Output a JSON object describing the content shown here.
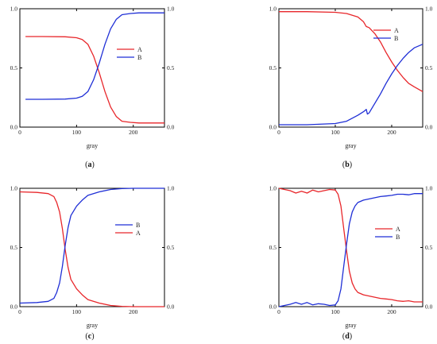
{
  "chart_data": [
    {
      "type": "line",
      "panel_label": "(a)",
      "caption": {
        "open": "(",
        "letter": "a",
        "close": ")"
      },
      "xlabel": "gray",
      "ylabel": "",
      "xlim": [
        0,
        255
      ],
      "ylim": [
        0,
        1.0
      ],
      "x_ticks": [
        "0",
        "100",
        "200"
      ],
      "y_ticks": [
        "0.0",
        "0.5",
        "1.0"
      ],
      "right_y_ticks": [
        "0.0",
        "0.5",
        "1.0"
      ],
      "grid": false,
      "legend_position": "upper-right-middle",
      "legend_order": [
        "A",
        "B"
      ],
      "series": [
        {
          "name": "A",
          "color": "#e8262a",
          "x": [
            10,
            40,
            80,
            100,
            110,
            120,
            130,
            140,
            150,
            160,
            170,
            180,
            195,
            210,
            255
          ],
          "y": [
            0.765,
            0.765,
            0.763,
            0.755,
            0.74,
            0.7,
            0.6,
            0.46,
            0.3,
            0.17,
            0.09,
            0.05,
            0.04,
            0.035,
            0.035
          ]
        },
        {
          "name": "B",
          "color": "#1f2fd6",
          "x": [
            10,
            40,
            80,
            100,
            110,
            120,
            130,
            140,
            150,
            160,
            170,
            180,
            195,
            210,
            255
          ],
          "y": [
            0.235,
            0.235,
            0.237,
            0.245,
            0.26,
            0.3,
            0.4,
            0.54,
            0.7,
            0.83,
            0.91,
            0.95,
            0.96,
            0.965,
            0.965
          ]
        }
      ]
    },
    {
      "type": "line",
      "panel_label": "(b)",
      "caption": {
        "open": "(",
        "letter": "b",
        "close": ")"
      },
      "xlabel": "gray",
      "ylabel": "",
      "xlim": [
        0,
        255
      ],
      "ylim": [
        0,
        1.0
      ],
      "x_ticks": [
        "0",
        "100",
        "200"
      ],
      "y_ticks": [
        "0.0",
        "0.5",
        "1.0"
      ],
      "right_y_ticks": [
        "0.0",
        "0.5",
        "1.0"
      ],
      "grid": false,
      "legend_position": "top-right",
      "legend_order": [
        "A",
        "B"
      ],
      "series": [
        {
          "name": "A",
          "color": "#e8262a",
          "x": [
            0,
            50,
            100,
            120,
            140,
            150,
            155,
            160,
            170,
            180,
            190,
            200,
            210,
            220,
            230,
            240,
            255
          ],
          "y": [
            0.975,
            0.975,
            0.97,
            0.96,
            0.93,
            0.89,
            0.85,
            0.84,
            0.79,
            0.72,
            0.63,
            0.55,
            0.48,
            0.42,
            0.37,
            0.34,
            0.3
          ]
        },
        {
          "name": "B",
          "color": "#1f2fd6",
          "x": [
            0,
            50,
            100,
            120,
            140,
            150,
            155,
            157,
            160,
            170,
            180,
            190,
            200,
            210,
            220,
            230,
            240,
            255
          ],
          "y": [
            0.02,
            0.02,
            0.03,
            0.05,
            0.1,
            0.13,
            0.15,
            0.11,
            0.12,
            0.2,
            0.28,
            0.37,
            0.45,
            0.52,
            0.58,
            0.63,
            0.67,
            0.7
          ]
        }
      ]
    },
    {
      "type": "line",
      "panel_label": "(c)",
      "caption": {
        "open": "(",
        "letter": "c",
        "close": ")"
      },
      "xlabel": "gray",
      "ylabel": "",
      "xlim": [
        0,
        255
      ],
      "ylim": [
        0,
        1.0
      ],
      "x_ticks": [
        "0",
        "100",
        "200"
      ],
      "y_ticks": [
        "0.0",
        "0.5",
        "1.0"
      ],
      "right_y_ticks": [
        "0.0",
        "0.5",
        "1.0"
      ],
      "grid": false,
      "legend_position": "right-middle",
      "legend_order": [
        "B",
        "A"
      ],
      "series": [
        {
          "name": "A",
          "color": "#e8262a",
          "x": [
            0,
            30,
            50,
            60,
            65,
            70,
            75,
            80,
            85,
            90,
            100,
            110,
            120,
            140,
            160,
            180,
            200,
            255
          ],
          "y": [
            0.97,
            0.965,
            0.955,
            0.93,
            0.88,
            0.8,
            0.66,
            0.48,
            0.33,
            0.23,
            0.15,
            0.1,
            0.06,
            0.03,
            0.01,
            0.003,
            0.0,
            0.0
          ]
        },
        {
          "name": "B",
          "color": "#1f2fd6",
          "x": [
            0,
            30,
            50,
            60,
            65,
            70,
            75,
            80,
            85,
            90,
            100,
            110,
            120,
            140,
            160,
            180,
            200,
            255
          ],
          "y": [
            0.03,
            0.035,
            0.045,
            0.07,
            0.12,
            0.2,
            0.34,
            0.52,
            0.67,
            0.77,
            0.85,
            0.9,
            0.94,
            0.97,
            0.99,
            0.997,
            1.0,
            1.0
          ]
        }
      ]
    },
    {
      "type": "line",
      "panel_label": "(d)",
      "caption": {
        "open": "(",
        "letter": "d",
        "close": ")"
      },
      "xlabel": "gray",
      "ylabel": "",
      "xlim": [
        0,
        255
      ],
      "ylim": [
        0,
        1.0
      ],
      "x_ticks": [
        "0",
        "100",
        "200"
      ],
      "y_ticks": [
        "0.0",
        "0.5",
        "1.0"
      ],
      "right_y_ticks": [
        "0.0",
        "0.5",
        "1.0"
      ],
      "grid": false,
      "legend_position": "upper-right-middle",
      "legend_order": [
        "A",
        "B"
      ],
      "series": [
        {
          "name": "A",
          "color": "#e8262a",
          "x": [
            0,
            10,
            20,
            30,
            40,
            50,
            60,
            70,
            80,
            90,
            100,
            105,
            110,
            115,
            120,
            125,
            130,
            135,
            140,
            150,
            160,
            170,
            180,
            190,
            200,
            210,
            220,
            230,
            240,
            255
          ],
          "y": [
            1.0,
            0.99,
            0.98,
            0.96,
            0.975,
            0.96,
            0.985,
            0.97,
            0.98,
            0.99,
            0.985,
            0.95,
            0.85,
            0.66,
            0.47,
            0.3,
            0.2,
            0.15,
            0.12,
            0.1,
            0.09,
            0.08,
            0.07,
            0.065,
            0.06,
            0.05,
            0.045,
            0.05,
            0.04,
            0.04
          ]
        },
        {
          "name": "B",
          "color": "#1f2fd6",
          "x": [
            0,
            10,
            20,
            30,
            40,
            50,
            60,
            70,
            80,
            90,
            100,
            105,
            110,
            115,
            120,
            125,
            130,
            135,
            140,
            150,
            160,
            170,
            180,
            190,
            200,
            210,
            220,
            230,
            240,
            255
          ],
          "y": [
            0.0,
            0.01,
            0.02,
            0.035,
            0.02,
            0.035,
            0.015,
            0.025,
            0.02,
            0.01,
            0.015,
            0.05,
            0.15,
            0.34,
            0.53,
            0.7,
            0.8,
            0.85,
            0.88,
            0.9,
            0.91,
            0.92,
            0.93,
            0.935,
            0.94,
            0.95,
            0.95,
            0.945,
            0.955,
            0.955
          ]
        }
      ]
    }
  ]
}
